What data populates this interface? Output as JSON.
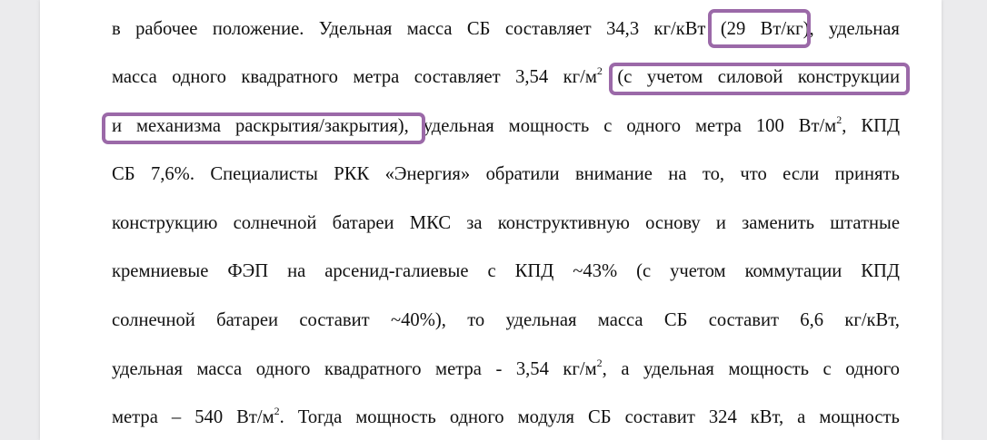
{
  "document": {
    "lines": [
      [
        {
          "t": "в рабочее положение. Удельная масса СБ составляет 34,3 кг/кВт (29 Вт/кг),  удельная"
        }
      ],
      [
        {
          "t": "масса одного квадратного метра составляет 3,54 кг/м"
        },
        {
          "s": "2"
        },
        {
          "t": " (с учетом силовой конструкции"
        }
      ],
      [
        {
          "t": "и механизма раскрытия/закрытия),  удельная мощность с одного метра 100 Вт/м"
        },
        {
          "s": "2"
        },
        {
          "t": ", КПД"
        }
      ],
      [
        {
          "t": "СБ 7,6%. Специалисты РКК «Энергия» обратили внимание на то, что если принять"
        }
      ],
      [
        {
          "t": "конструкцию солнечной батареи МКС за конструктивную основу и заменить штатные"
        }
      ],
      [
        {
          "t": "кремниевые ФЭП на арсенид-галиевые с КПД ~43% (с учетом коммутации КПД"
        }
      ],
      [
        {
          "t": "солнечной батареи составит ~40%), то удельная масса СБ составит 6,6 кг/кВт,"
        }
      ],
      [
        {
          "t": "удельная масса одного квадратного метра - 3,54 кг/м"
        },
        {
          "s": "2"
        },
        {
          "t": ", а  удельная мощность с одного"
        }
      ],
      [
        {
          "t": "метра – 540 Вт/м"
        },
        {
          "s": "2"
        },
        {
          "t": ". Тогда мощность одного модуля СБ составит 324 кВт, а мощность"
        }
      ]
    ]
  },
  "annotations": {
    "color": "#9b69a8",
    "highlights": [
      "(29 Вт/кг)",
      "(с учетом силовой конструкции",
      "и механизма раскрытия/закрытия)"
    ]
  }
}
